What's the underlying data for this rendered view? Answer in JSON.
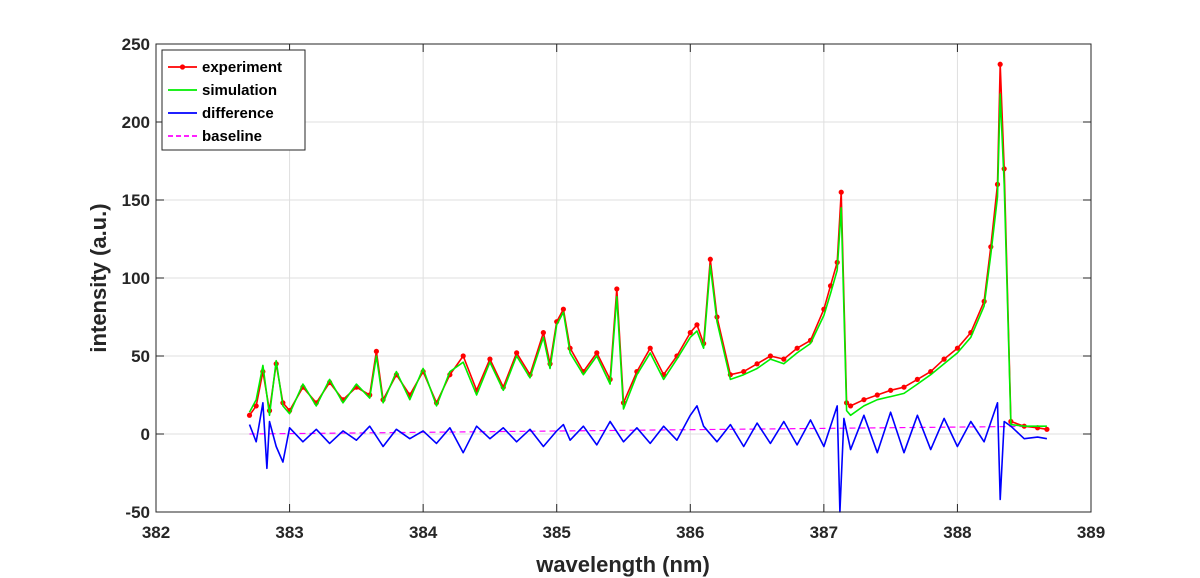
{
  "chart_data": {
    "type": "line",
    "xlabel": "wavelength (nm)",
    "ylabel": "intensity (a.u.)",
    "xlim": [
      382,
      389
    ],
    "ylim": [
      -50,
      250
    ],
    "xticks": [
      382,
      383,
      384,
      385,
      386,
      387,
      388,
      389
    ],
    "yticks": [
      -50,
      0,
      50,
      100,
      150,
      200,
      250
    ],
    "grid": true,
    "legend_position": "top-left",
    "series": [
      {
        "name": "experiment",
        "color": "#ff0000",
        "style": "line-with-dot-markers",
        "x": [
          382.7,
          382.75,
          382.8,
          382.85,
          382.9,
          382.95,
          383.0,
          383.1,
          383.2,
          383.3,
          383.4,
          383.5,
          383.6,
          383.65,
          383.7,
          383.8,
          383.9,
          384.0,
          384.1,
          384.2,
          384.3,
          384.4,
          384.5,
          384.6,
          384.7,
          384.8,
          384.9,
          384.95,
          385.0,
          385.05,
          385.1,
          385.2,
          385.3,
          385.4,
          385.45,
          385.5,
          385.6,
          385.7,
          385.8,
          385.9,
          386.0,
          386.05,
          386.1,
          386.15,
          386.2,
          386.3,
          386.4,
          386.5,
          386.6,
          386.7,
          386.8,
          386.9,
          387.0,
          387.05,
          387.1,
          387.13,
          387.17,
          387.2,
          387.3,
          387.4,
          387.5,
          387.6,
          387.7,
          387.8,
          387.9,
          388.0,
          388.1,
          388.2,
          388.25,
          388.3,
          388.32,
          388.35,
          388.4,
          388.5,
          388.6,
          388.67
        ],
        "values": [
          12,
          18,
          40,
          15,
          45,
          20,
          15,
          30,
          20,
          33,
          22,
          30,
          25,
          53,
          22,
          38,
          25,
          40,
          20,
          38,
          50,
          28,
          48,
          30,
          52,
          38,
          65,
          45,
          72,
          80,
          55,
          40,
          52,
          35,
          93,
          20,
          40,
          55,
          38,
          50,
          65,
          70,
          58,
          112,
          75,
          38,
          40,
          45,
          50,
          48,
          55,
          60,
          80,
          95,
          110,
          155,
          20,
          18,
          22,
          25,
          28,
          30,
          35,
          40,
          48,
          55,
          65,
          85,
          120,
          160,
          237,
          170,
          8,
          5,
          4,
          3
        ]
      },
      {
        "name": "simulation",
        "color": "#00ee00",
        "style": "line",
        "x": [
          382.7,
          382.75,
          382.8,
          382.85,
          382.9,
          382.95,
          383.0,
          383.1,
          383.2,
          383.3,
          383.4,
          383.5,
          383.6,
          383.65,
          383.7,
          383.8,
          383.9,
          384.0,
          384.1,
          384.2,
          384.3,
          384.4,
          384.5,
          384.6,
          384.7,
          384.8,
          384.9,
          384.95,
          385.0,
          385.05,
          385.1,
          385.2,
          385.3,
          385.4,
          385.45,
          385.5,
          385.6,
          385.7,
          385.8,
          385.9,
          386.0,
          386.05,
          386.1,
          386.15,
          386.2,
          386.3,
          386.4,
          386.5,
          386.6,
          386.7,
          386.8,
          386.9,
          387.0,
          387.05,
          387.1,
          387.13,
          387.17,
          387.2,
          387.3,
          387.4,
          387.5,
          387.6,
          387.7,
          387.8,
          387.9,
          388.0,
          388.1,
          388.2,
          388.25,
          388.3,
          388.32,
          388.35,
          388.4,
          388.5,
          388.6,
          388.67
        ],
        "values": [
          14,
          22,
          44,
          12,
          47,
          18,
          13,
          32,
          18,
          35,
          20,
          32,
          23,
          50,
          20,
          40,
          22,
          42,
          18,
          40,
          46,
          25,
          46,
          28,
          50,
          36,
          62,
          42,
          70,
          78,
          52,
          38,
          50,
          32,
          88,
          16,
          38,
          52,
          35,
          48,
          62,
          66,
          55,
          108,
          72,
          35,
          38,
          42,
          48,
          45,
          52,
          58,
          76,
          90,
          105,
          145,
          15,
          12,
          18,
          22,
          24,
          26,
          32,
          38,
          45,
          52,
          62,
          82,
          115,
          152,
          218,
          160,
          6,
          5,
          5,
          5
        ]
      },
      {
        "name": "difference",
        "color": "#0000ff",
        "style": "line",
        "x": [
          382.7,
          382.75,
          382.8,
          382.83,
          382.85,
          382.9,
          382.95,
          383.0,
          383.1,
          383.2,
          383.3,
          383.4,
          383.5,
          383.6,
          383.7,
          383.8,
          383.9,
          384.0,
          384.1,
          384.2,
          384.3,
          384.4,
          384.5,
          384.6,
          384.7,
          384.8,
          384.9,
          385.0,
          385.05,
          385.1,
          385.2,
          385.3,
          385.4,
          385.5,
          385.6,
          385.7,
          385.8,
          385.9,
          386.0,
          386.05,
          386.1,
          386.2,
          386.3,
          386.4,
          386.5,
          386.6,
          386.7,
          386.8,
          386.9,
          387.0,
          387.1,
          387.12,
          387.15,
          387.2,
          387.3,
          387.4,
          387.5,
          387.6,
          387.7,
          387.8,
          387.9,
          388.0,
          388.1,
          388.2,
          388.3,
          388.32,
          388.35,
          388.4,
          388.5,
          388.6,
          388.67
        ],
        "values": [
          6,
          -5,
          20,
          -22,
          8,
          -8,
          -18,
          4,
          -5,
          3,
          -6,
          2,
          -4,
          5,
          -8,
          3,
          -3,
          2,
          -6,
          4,
          -12,
          5,
          -3,
          4,
          -5,
          3,
          -8,
          2,
          6,
          -4,
          5,
          -7,
          8,
          -5,
          4,
          -6,
          5,
          -4,
          12,
          18,
          5,
          -5,
          6,
          -8,
          7,
          -6,
          8,
          -7,
          9,
          -8,
          18,
          -50,
          10,
          -10,
          12,
          -12,
          14,
          -12,
          12,
          -10,
          10,
          -8,
          8,
          -5,
          20,
          -42,
          8,
          5,
          -3,
          -2,
          -3
        ]
      },
      {
        "name": "baseline",
        "color": "#ff00ff",
        "style": "dashed",
        "x": [
          382.7,
          388.67
        ],
        "values": [
          0,
          5
        ]
      }
    ]
  },
  "legend": {
    "items": [
      {
        "label": "experiment",
        "color": "#ff0000",
        "style": "line-with-dot-markers"
      },
      {
        "label": "simulation",
        "color": "#00ee00",
        "style": "line"
      },
      {
        "label": "difference",
        "color": "#0000ff",
        "style": "line"
      },
      {
        "label": "baseline",
        "color": "#ff00ff",
        "style": "dashed"
      }
    ]
  }
}
